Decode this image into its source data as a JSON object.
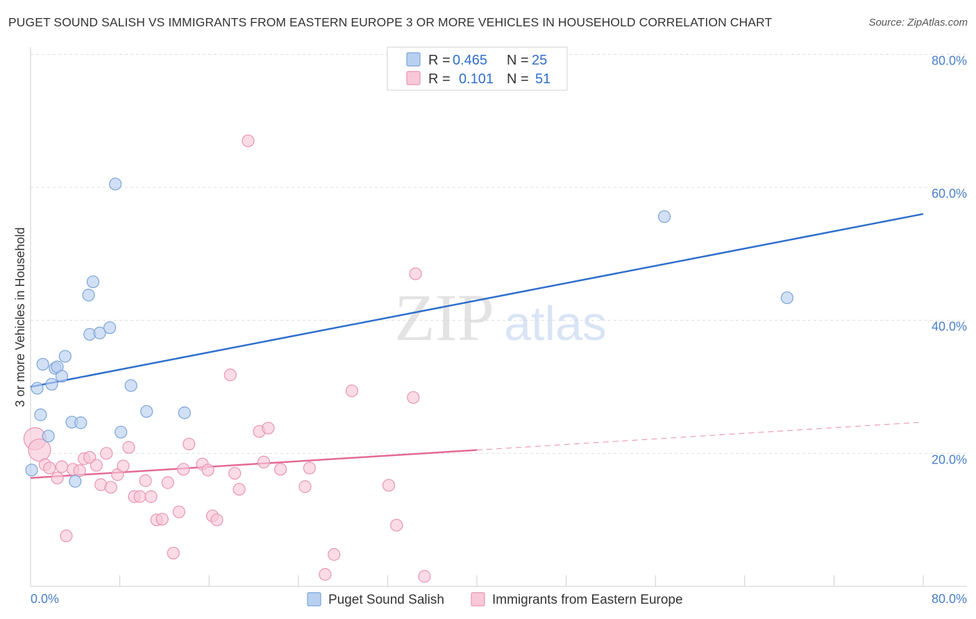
{
  "title": "PUGET SOUND SALISH VS IMMIGRANTS FROM EASTERN EUROPE 3 OR MORE VEHICLES IN HOUSEHOLD CORRELATION CHART",
  "source": "Source: ZipAtlas.com",
  "watermark": {
    "zip": "ZIP",
    "atlas": "atlas"
  },
  "colors": {
    "blue_fill": "#b8d0f0",
    "blue_stroke": "#7aa3d8",
    "blue_line": "#2f6fcc",
    "pink_fill": "#f8c8d8",
    "pink_stroke": "#e894b0",
    "pink_line": "#e36a96",
    "tick_text": "#4a7fc8",
    "grid": "#dddddd"
  },
  "legend": {
    "rows": [
      {
        "r_label": "R =",
        "r_value": "0.465",
        "n_label": "N =",
        "n_value": "25"
      },
      {
        "r_label": "R =",
        "r_value": "0.101",
        "n_label": "N =",
        "n_value": "51"
      }
    ]
  },
  "chart_data": {
    "type": "scatter",
    "title": "PUGET SOUND SALISH VS IMMIGRANTS FROM EASTERN EUROPE 3 OR MORE VEHICLES IN HOUSEHOLD CORRELATION CHART",
    "xlabel": "",
    "ylabel": "3 or more Vehicles in Household",
    "xlim": [
      0,
      80
    ],
    "ylim": [
      0,
      82
    ],
    "x_tick_labels": {
      "left": "0.0%",
      "right": "80.0%"
    },
    "y_ticks": [
      {
        "value": 20,
        "label": "20.0%"
      },
      {
        "value": 40,
        "label": "40.0%"
      },
      {
        "value": 60,
        "label": "60.0%"
      },
      {
        "value": 80,
        "label": "80.0%"
      }
    ],
    "series": [
      {
        "name": "Puget Sound Salish",
        "color": "blue",
        "trend": {
          "x0": 0,
          "y0": 30.0,
          "x1": 80,
          "y1": 56.0,
          "solid_until": 80
        },
        "points": [
          [
            0.1,
            17.5
          ],
          [
            0.6,
            29.8
          ],
          [
            0.9,
            25.8
          ],
          [
            1.1,
            33.4
          ],
          [
            1.6,
            22.6
          ],
          [
            1.9,
            30.4
          ],
          [
            2.2,
            32.8
          ],
          [
            2.4,
            33.0
          ],
          [
            2.8,
            31.6
          ],
          [
            3.1,
            34.6
          ],
          [
            3.7,
            24.7
          ],
          [
            4.0,
            15.8
          ],
          [
            4.5,
            24.6
          ],
          [
            5.2,
            43.8
          ],
          [
            5.3,
            37.9
          ],
          [
            5.6,
            45.8
          ],
          [
            6.2,
            38.1
          ],
          [
            7.1,
            38.9
          ],
          [
            7.6,
            60.5
          ],
          [
            8.1,
            23.2
          ],
          [
            9.0,
            30.2
          ],
          [
            10.4,
            26.3
          ],
          [
            13.8,
            26.1
          ],
          [
            56.8,
            55.6
          ],
          [
            67.8,
            43.4
          ]
        ]
      },
      {
        "name": "Immigrants from Eastern Europe",
        "color": "pink",
        "trend": {
          "x0": 0,
          "y0": 16.3,
          "x1": 80,
          "y1": 24.7,
          "solid_until": 40
        },
        "points": [
          [
            0.4,
            22.2
          ],
          [
            0.8,
            20.5
          ],
          [
            1.3,
            18.3
          ],
          [
            1.7,
            17.8
          ],
          [
            2.4,
            16.3
          ],
          [
            2.8,
            18.0
          ],
          [
            3.2,
            7.6
          ],
          [
            3.8,
            17.6
          ],
          [
            4.4,
            17.4
          ],
          [
            4.8,
            19.2
          ],
          [
            5.3,
            19.4
          ],
          [
            5.9,
            18.2
          ],
          [
            6.3,
            15.3
          ],
          [
            6.8,
            20.0
          ],
          [
            7.2,
            14.9
          ],
          [
            7.8,
            16.8
          ],
          [
            8.3,
            18.1
          ],
          [
            8.8,
            20.9
          ],
          [
            9.3,
            13.5
          ],
          [
            9.8,
            13.5
          ],
          [
            10.3,
            15.9
          ],
          [
            10.8,
            13.5
          ],
          [
            11.3,
            10.0
          ],
          [
            11.8,
            10.1
          ],
          [
            12.3,
            15.6
          ],
          [
            12.8,
            5.0
          ],
          [
            13.3,
            11.2
          ],
          [
            13.7,
            17.6
          ],
          [
            14.2,
            21.4
          ],
          [
            15.4,
            18.4
          ],
          [
            15.9,
            17.5
          ],
          [
            16.3,
            10.6
          ],
          [
            16.7,
            10.0
          ],
          [
            17.9,
            31.8
          ],
          [
            18.3,
            17.0
          ],
          [
            18.7,
            14.6
          ],
          [
            19.5,
            67.0
          ],
          [
            20.5,
            23.3
          ],
          [
            20.9,
            18.7
          ],
          [
            21.3,
            23.8
          ],
          [
            22.4,
            17.6
          ],
          [
            24.6,
            15.0
          ],
          [
            25.0,
            17.8
          ],
          [
            26.4,
            1.8
          ],
          [
            27.2,
            4.8
          ],
          [
            28.8,
            29.4
          ],
          [
            32.1,
            15.2
          ],
          [
            32.8,
            9.2
          ],
          [
            34.3,
            28.4
          ],
          [
            34.5,
            47.0
          ],
          [
            35.3,
            1.5
          ]
        ]
      }
    ],
    "legend_entries": [
      "Puget Sound Salish",
      "Immigrants from Eastern Europe"
    ]
  }
}
